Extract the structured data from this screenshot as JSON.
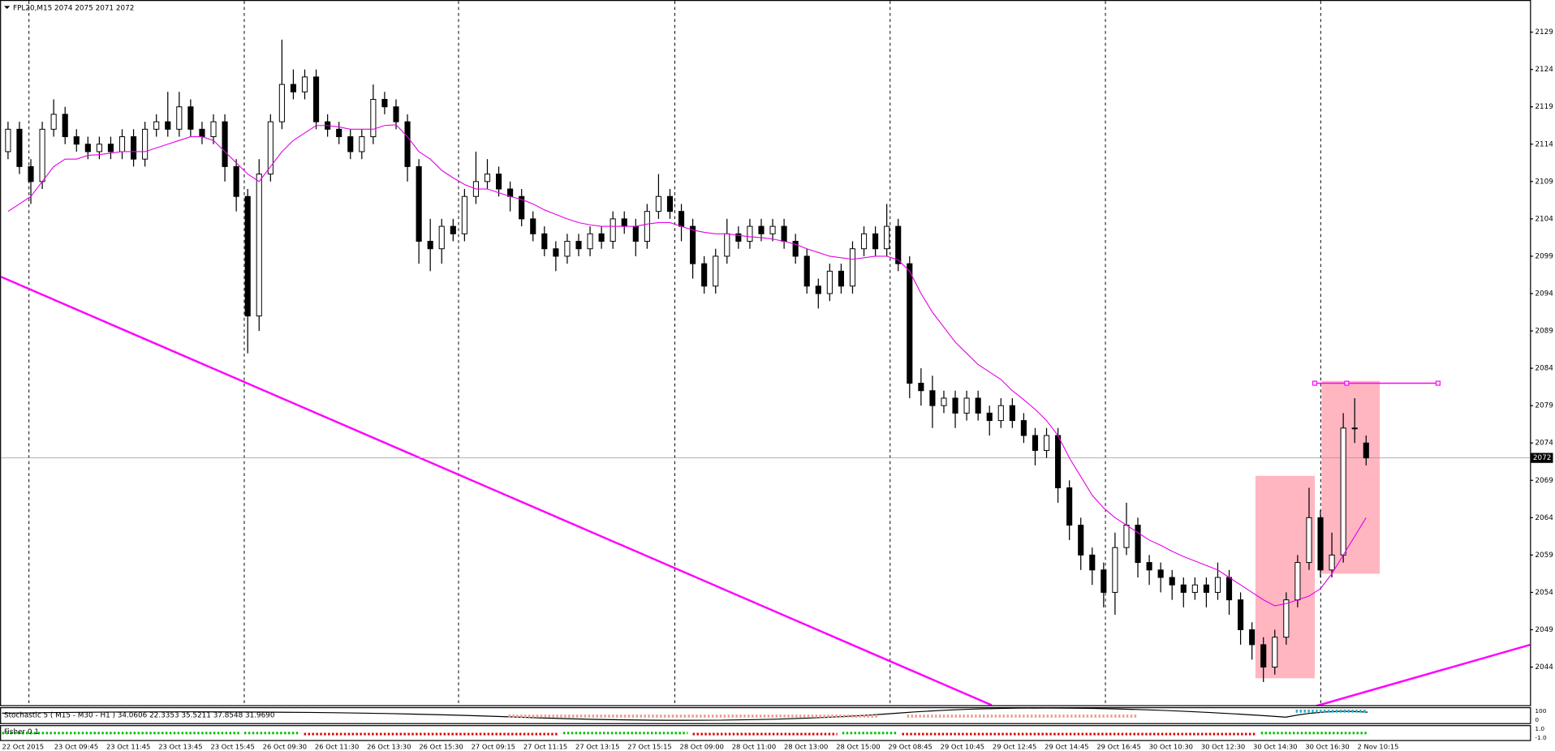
{
  "chart_data": {
    "type": "candlestick",
    "title": "FPL20,M15  2074 2075 2071 2072",
    "ylim": [
      2038.9,
      2133.3
    ],
    "yticks": [
      2044,
      2049,
      2054,
      2059,
      2064,
      2069,
      2074,
      2079,
      2084,
      2089,
      2094,
      2099,
      2104,
      2109,
      2114,
      2119,
      2124,
      2129
    ],
    "x_labels": [
      "22 Oct 2015",
      "23 Oct 09:45",
      "23 Oct 11:45",
      "23 Oct 13:45",
      "23 Oct 15:45",
      "26 Oct 09:30",
      "26 Oct 11:30",
      "26 Oct 13:30",
      "26 Oct 15:30",
      "27 Oct 09:15",
      "27 Oct 11:15",
      "27 Oct 13:15",
      "27 Oct 15:15",
      "28 Oct 09:00",
      "28 Oct 11:00",
      "28 Oct 13:00",
      "28 Oct 15:00",
      "29 Oct 08:45",
      "29 Oct 10:45",
      "29 Oct 12:45",
      "29 Oct 14:45",
      "29 Oct 16:45",
      "30 Oct 10:30",
      "30 Oct 12:30",
      "30 Oct 14:30",
      "30 Oct 16:30",
      "2 Nov 10:15"
    ],
    "candles": [
      [
        2113,
        2117,
        2112,
        2116
      ],
      [
        2116,
        2117,
        2110,
        2111
      ],
      [
        2111,
        2112,
        2106,
        2109
      ],
      [
        2109,
        2117,
        2108,
        2116
      ],
      [
        2116,
        2120,
        2115,
        2118
      ],
      [
        2118,
        2119,
        2114,
        2115
      ],
      [
        2115,
        2116,
        2113,
        2114
      ],
      [
        2114,
        2115,
        2112,
        2113
      ],
      [
        2113,
        2115,
        2112,
        2114
      ],
      [
        2114,
        2115,
        2112,
        2113
      ],
      [
        2113,
        2116,
        2112,
        2115
      ],
      [
        2115,
        2116,
        2111,
        2112
      ],
      [
        2112,
        2117,
        2111,
        2116
      ],
      [
        2116,
        2118,
        2115,
        2117
      ],
      [
        2117,
        2121,
        2115,
        2116
      ],
      [
        2116,
        2121,
        2115,
        2119
      ],
      [
        2119,
        2120,
        2115,
        2116
      ],
      [
        2116,
        2117,
        2114,
        2115
      ],
      [
        2115,
        2118,
        2114,
        2117
      ],
      [
        2117,
        2118,
        2109,
        2111
      ],
      [
        2111,
        2112,
        2105,
        2107
      ],
      [
        2107,
        2108,
        2086,
        2091
      ],
      [
        2091,
        2112,
        2089,
        2110
      ],
      [
        2110,
        2118,
        2109,
        2117
      ],
      [
        2117,
        2128,
        2116,
        2122
      ],
      [
        2122,
        2124,
        2120,
        2121
      ],
      [
        2121,
        2124,
        2120,
        2123
      ],
      [
        2123,
        2124,
        2116,
        2117
      ],
      [
        2117,
        2118,
        2115,
        2116
      ],
      [
        2116,
        2117,
        2114,
        2115
      ],
      [
        2115,
        2116,
        2112,
        2113
      ],
      [
        2113,
        2116,
        2112,
        2115
      ],
      [
        2115,
        2122,
        2114,
        2120
      ],
      [
        2120,
        2121,
        2118,
        2119
      ],
      [
        2119,
        2120,
        2116,
        2117
      ],
      [
        2117,
        2118,
        2109,
        2111
      ],
      [
        2111,
        2112,
        2098,
        2101
      ],
      [
        2101,
        2104,
        2097,
        2100
      ],
      [
        2100,
        2104,
        2098,
        2103
      ],
      [
        2103,
        2104,
        2101,
        2102
      ],
      [
        2102,
        2108,
        2101,
        2107
      ],
      [
        2107,
        2113,
        2106,
        2109
      ],
      [
        2109,
        2112,
        2108,
        2110
      ],
      [
        2110,
        2111,
        2107,
        2108
      ],
      [
        2108,
        2109,
        2105,
        2107
      ],
      [
        2107,
        2108,
        2103,
        2104
      ],
      [
        2104,
        2105,
        2101,
        2102
      ],
      [
        2102,
        2103,
        2099,
        2100
      ],
      [
        2100,
        2101,
        2097,
        2099
      ],
      [
        2099,
        2102,
        2098,
        2101
      ],
      [
        2101,
        2102,
        2099,
        2100
      ],
      [
        2100,
        2103,
        2099,
        2102
      ],
      [
        2102,
        2103,
        2100,
        2101
      ],
      [
        2101,
        2105,
        2100,
        2104
      ],
      [
        2104,
        2105,
        2102,
        2103
      ],
      [
        2103,
        2104,
        2099,
        2101
      ],
      [
        2101,
        2106,
        2100,
        2105
      ],
      [
        2105,
        2110,
        2104,
        2107
      ],
      [
        2107,
        2108,
        2104,
        2105
      ],
      [
        2105,
        2106,
        2101,
        2103
      ],
      [
        2103,
        2104,
        2096,
        2098
      ],
      [
        2098,
        2099,
        2094,
        2095
      ],
      [
        2095,
        2100,
        2094,
        2099
      ],
      [
        2099,
        2104,
        2098,
        2102
      ],
      [
        2102,
        2103,
        2100,
        2101
      ],
      [
        2101,
        2104,
        2100,
        2103
      ],
      [
        2103,
        2104,
        2101,
        2102
      ],
      [
        2102,
        2104,
        2101,
        2103
      ],
      [
        2103,
        2104,
        2100,
        2101
      ],
      [
        2101,
        2102,
        2098,
        2099
      ],
      [
        2099,
        2100,
        2094,
        2095
      ],
      [
        2095,
        2096,
        2092,
        2094
      ],
      [
        2094,
        2098,
        2093,
        2097
      ],
      [
        2097,
        2098,
        2094,
        2095
      ],
      [
        2095,
        2101,
        2094,
        2100
      ],
      [
        2100,
        2103,
        2099,
        2102
      ],
      [
        2102,
        2103,
        2099,
        2100
      ],
      [
        2100,
        2106,
        2099,
        2103
      ],
      [
        2103,
        2104,
        2097,
        2098
      ],
      [
        2098,
        2099,
        2080,
        2082
      ],
      [
        2082,
        2084,
        2079,
        2081
      ],
      [
        2081,
        2083,
        2076,
        2079
      ],
      [
        2079,
        2081,
        2078,
        2080
      ],
      [
        2080,
        2081,
        2076,
        2078
      ],
      [
        2078,
        2081,
        2077,
        2080
      ],
      [
        2080,
        2081,
        2077,
        2078
      ],
      [
        2078,
        2079,
        2075,
        2077
      ],
      [
        2077,
        2080,
        2076,
        2079
      ],
      [
        2079,
        2080,
        2076,
        2077
      ],
      [
        2077,
        2078,
        2074,
        2075
      ],
      [
        2075,
        2076,
        2071,
        2073
      ],
      [
        2073,
        2076,
        2072,
        2075
      ],
      [
        2075,
        2076,
        2066,
        2068
      ],
      [
        2068,
        2069,
        2061,
        2063
      ],
      [
        2063,
        2064,
        2057,
        2059
      ],
      [
        2059,
        2060,
        2055,
        2057
      ],
      [
        2057,
        2058,
        2052,
        2054
      ],
      [
        2054,
        2062,
        2051,
        2060
      ],
      [
        2060,
        2066,
        2059,
        2063
      ],
      [
        2063,
        2064,
        2056,
        2058
      ],
      [
        2058,
        2059,
        2055,
        2057
      ],
      [
        2057,
        2058,
        2054,
        2056
      ],
      [
        2056,
        2057,
        2053,
        2055
      ],
      [
        2055,
        2056,
        2052,
        2054
      ],
      [
        2054,
        2056,
        2053,
        2055
      ],
      [
        2055,
        2056,
        2052,
        2054
      ],
      [
        2054,
        2058,
        2053,
        2056
      ],
      [
        2056,
        2057,
        2051,
        2053
      ],
      [
        2053,
        2054,
        2047,
        2049
      ],
      [
        2049,
        2050,
        2045,
        2047
      ],
      [
        2047,
        2048,
        2042,
        2044
      ],
      [
        2044,
        2049,
        2043,
        2048
      ],
      [
        2048,
        2054,
        2047,
        2053
      ],
      [
        2053,
        2059,
        2052,
        2058
      ],
      [
        2058,
        2068,
        2057,
        2064
      ],
      [
        2064,
        2065,
        2056,
        2057
      ],
      [
        2057,
        2062,
        2056,
        2059
      ],
      [
        2059,
        2078,
        2058,
        2076
      ],
      [
        2076,
        2080,
        2074,
        2076
      ],
      [
        2074,
        2075,
        2071,
        2072
      ]
    ],
    "ma": {
      "color": "#e600e6",
      "values": [
        2105,
        2106,
        2107,
        2109,
        2111,
        2112,
        2112,
        2112.5,
        2112.6,
        2112.8,
        2113,
        2113,
        2113,
        2113.5,
        2114,
        2114.5,
        2115,
        2115,
        2114.5,
        2113,
        2111.5,
        2110,
        2109,
        2111,
        2113,
        2114.5,
        2115.5,
        2116.5,
        2116.5,
        2116.3,
        2116,
        2116,
        2116,
        2116.5,
        2116.6,
        2115,
        2113,
        2112,
        2110.5,
        2109.5,
        2108.6,
        2108,
        2108,
        2107.5,
        2107,
        2106.6,
        2106,
        2105.2,
        2104.6,
        2104,
        2103.5,
        2103.2,
        2103,
        2103,
        2103,
        2103,
        2103.3,
        2103.5,
        2103.5,
        2103,
        2102.5,
        2102.2,
        2102,
        2102,
        2101.8,
        2101.6,
        2101.5,
        2101.3,
        2101,
        2100.6,
        2100,
        2099.5,
        2099,
        2098.8,
        2098.6,
        2098.8,
        2099,
        2099,
        2098.5,
        2097,
        2094,
        2091.5,
        2089.5,
        2087.5,
        2086,
        2084.5,
        2083.5,
        2082.5,
        2081,
        2079.8,
        2078.5,
        2077,
        2075,
        2072,
        2069.5,
        2067,
        2065.3,
        2064,
        2063,
        2062,
        2061,
        2060.3,
        2059.5,
        2058.8,
        2058.2,
        2057.6,
        2057,
        2056,
        2055,
        2054,
        2053,
        2052.2,
        2052.5,
        2053,
        2053.5,
        2054.5,
        2056.5,
        2059,
        2061.5,
        2064
      ]
    },
    "trendlines": [
      {
        "color": "#ff00ff",
        "points": [
          [
            -0.7,
            2096.3
          ],
          [
            86.2,
            2038.9
          ]
        ]
      },
      {
        "color": "#ff00ff",
        "points": [
          [
            112.8,
            2038
          ],
          [
            133.4,
            2047
          ]
        ]
      }
    ],
    "hline": {
      "color": "#ff00ff",
      "price": 2082,
      "from": 114.5,
      "to": 125.3
    },
    "rectangles": [
      {
        "color": "#ffb6c1",
        "from": 109.3,
        "to": 114.5,
        "top": 2069.6,
        "bottom": 2042.5
      },
      {
        "color": "#ffb6c1",
        "from": 115.1,
        "to": 120.2,
        "top": 2082.3,
        "bottom": 2056.5
      }
    ],
    "stochastic_label": "Stochastic 5 ( M15 - M30 - H1 ) 34.0606 22.3353 35.5211 37.8548 31.9690",
    "stochastic_scale": [
      "100",
      "0"
    ],
    "fisher_label": "Fisher 0.1",
    "fisher_scale": [
      "1.0",
      "-1.0"
    ]
  }
}
